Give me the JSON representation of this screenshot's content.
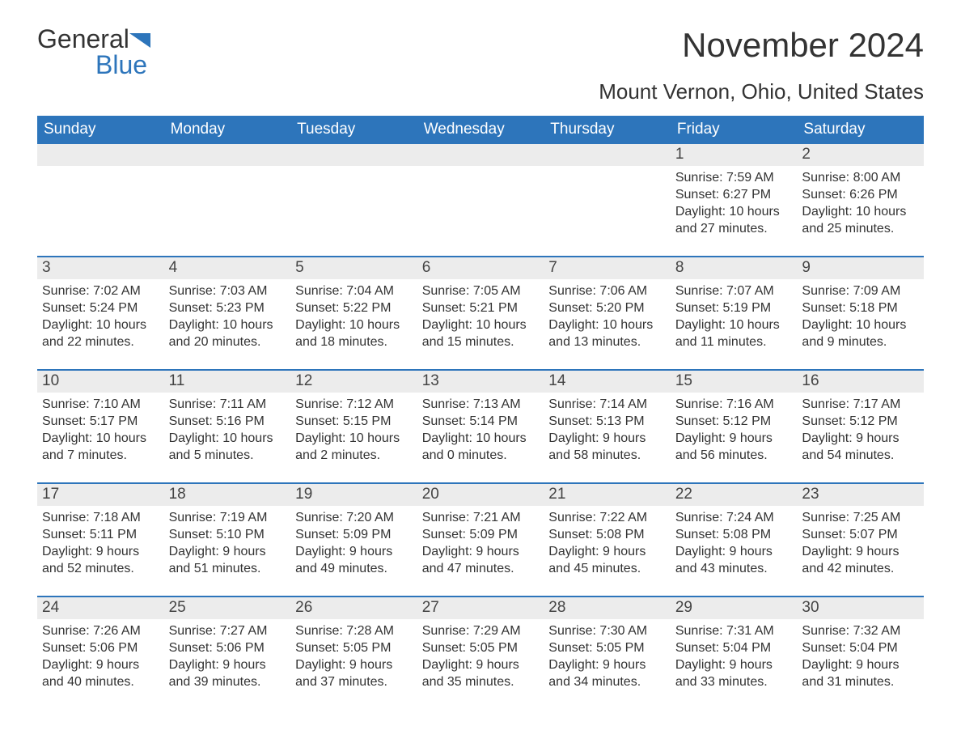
{
  "logo": {
    "text1": "General",
    "text2": "Blue"
  },
  "title": "November 2024",
  "location": "Mount Vernon, Ohio, United States",
  "colors": {
    "header_bg": "#2d75bb",
    "header_text": "#ffffff",
    "daynum_bg": "#ececec",
    "week_border": "#2d75bb",
    "body_text": "#333333",
    "page_bg": "#ffffff"
  },
  "layout": {
    "cols": 7,
    "rows": 5,
    "first_day_col": 5
  },
  "typography": {
    "month_title_fontsize": 42,
    "location_fontsize": 26,
    "header_cell_fontsize": 19,
    "daynum_fontsize": 19,
    "body_fontsize": 16
  },
  "week_headers": [
    "Sunday",
    "Monday",
    "Tuesday",
    "Wednesday",
    "Thursday",
    "Friday",
    "Saturday"
  ],
  "days": [
    {
      "n": 1,
      "sunrise": "7:59 AM",
      "sunset": "6:27 PM",
      "daylight": "10 hours and 27 minutes."
    },
    {
      "n": 2,
      "sunrise": "8:00 AM",
      "sunset": "6:26 PM",
      "daylight": "10 hours and 25 minutes."
    },
    {
      "n": 3,
      "sunrise": "7:02 AM",
      "sunset": "5:24 PM",
      "daylight": "10 hours and 22 minutes."
    },
    {
      "n": 4,
      "sunrise": "7:03 AM",
      "sunset": "5:23 PM",
      "daylight": "10 hours and 20 minutes."
    },
    {
      "n": 5,
      "sunrise": "7:04 AM",
      "sunset": "5:22 PM",
      "daylight": "10 hours and 18 minutes."
    },
    {
      "n": 6,
      "sunrise": "7:05 AM",
      "sunset": "5:21 PM",
      "daylight": "10 hours and 15 minutes."
    },
    {
      "n": 7,
      "sunrise": "7:06 AM",
      "sunset": "5:20 PM",
      "daylight": "10 hours and 13 minutes."
    },
    {
      "n": 8,
      "sunrise": "7:07 AM",
      "sunset": "5:19 PM",
      "daylight": "10 hours and 11 minutes."
    },
    {
      "n": 9,
      "sunrise": "7:09 AM",
      "sunset": "5:18 PM",
      "daylight": "10 hours and 9 minutes."
    },
    {
      "n": 10,
      "sunrise": "7:10 AM",
      "sunset": "5:17 PM",
      "daylight": "10 hours and 7 minutes."
    },
    {
      "n": 11,
      "sunrise": "7:11 AM",
      "sunset": "5:16 PM",
      "daylight": "10 hours and 5 minutes."
    },
    {
      "n": 12,
      "sunrise": "7:12 AM",
      "sunset": "5:15 PM",
      "daylight": "10 hours and 2 minutes."
    },
    {
      "n": 13,
      "sunrise": "7:13 AM",
      "sunset": "5:14 PM",
      "daylight": "10 hours and 0 minutes."
    },
    {
      "n": 14,
      "sunrise": "7:14 AM",
      "sunset": "5:13 PM",
      "daylight": "9 hours and 58 minutes."
    },
    {
      "n": 15,
      "sunrise": "7:16 AM",
      "sunset": "5:12 PM",
      "daylight": "9 hours and 56 minutes."
    },
    {
      "n": 16,
      "sunrise": "7:17 AM",
      "sunset": "5:12 PM",
      "daylight": "9 hours and 54 minutes."
    },
    {
      "n": 17,
      "sunrise": "7:18 AM",
      "sunset": "5:11 PM",
      "daylight": "9 hours and 52 minutes."
    },
    {
      "n": 18,
      "sunrise": "7:19 AM",
      "sunset": "5:10 PM",
      "daylight": "9 hours and 51 minutes."
    },
    {
      "n": 19,
      "sunrise": "7:20 AM",
      "sunset": "5:09 PM",
      "daylight": "9 hours and 49 minutes."
    },
    {
      "n": 20,
      "sunrise": "7:21 AM",
      "sunset": "5:09 PM",
      "daylight": "9 hours and 47 minutes."
    },
    {
      "n": 21,
      "sunrise": "7:22 AM",
      "sunset": "5:08 PM",
      "daylight": "9 hours and 45 minutes."
    },
    {
      "n": 22,
      "sunrise": "7:24 AM",
      "sunset": "5:08 PM",
      "daylight": "9 hours and 43 minutes."
    },
    {
      "n": 23,
      "sunrise": "7:25 AM",
      "sunset": "5:07 PM",
      "daylight": "9 hours and 42 minutes."
    },
    {
      "n": 24,
      "sunrise": "7:26 AM",
      "sunset": "5:06 PM",
      "daylight": "9 hours and 40 minutes."
    },
    {
      "n": 25,
      "sunrise": "7:27 AM",
      "sunset": "5:06 PM",
      "daylight": "9 hours and 39 minutes."
    },
    {
      "n": 26,
      "sunrise": "7:28 AM",
      "sunset": "5:05 PM",
      "daylight": "9 hours and 37 minutes."
    },
    {
      "n": 27,
      "sunrise": "7:29 AM",
      "sunset": "5:05 PM",
      "daylight": "9 hours and 35 minutes."
    },
    {
      "n": 28,
      "sunrise": "7:30 AM",
      "sunset": "5:05 PM",
      "daylight": "9 hours and 34 minutes."
    },
    {
      "n": 29,
      "sunrise": "7:31 AM",
      "sunset": "5:04 PM",
      "daylight": "9 hours and 33 minutes."
    },
    {
      "n": 30,
      "sunrise": "7:32 AM",
      "sunset": "5:04 PM",
      "daylight": "9 hours and 31 minutes."
    }
  ],
  "labels": {
    "sunrise": "Sunrise: ",
    "sunset": "Sunset: ",
    "daylight": "Daylight: "
  }
}
